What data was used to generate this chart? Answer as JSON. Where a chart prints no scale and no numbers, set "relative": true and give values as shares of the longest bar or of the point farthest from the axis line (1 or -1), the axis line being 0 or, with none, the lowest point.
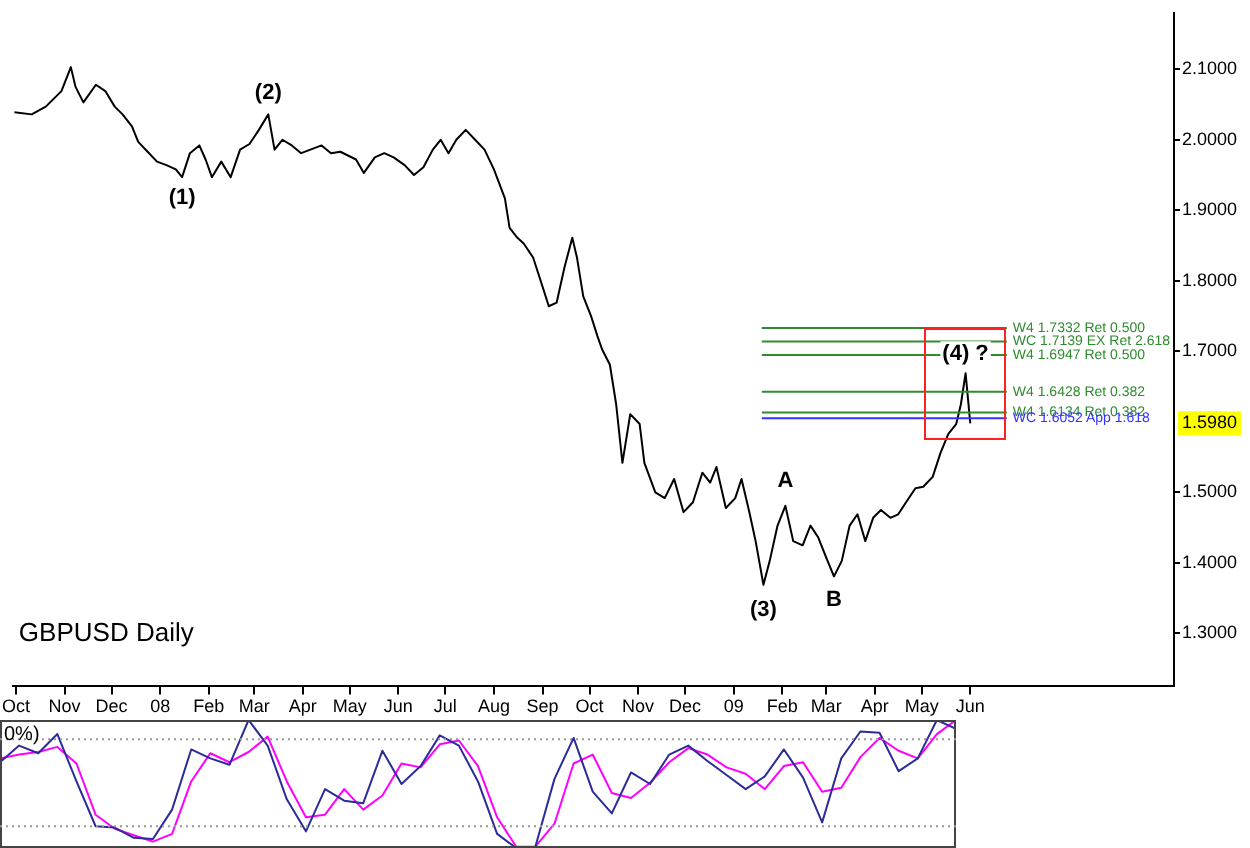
{
  "chart_data": [
    {
      "type": "line",
      "title": "GBPUSD Daily",
      "color": "#000000",
      "legend": false,
      "x": [
        "2007-09-30",
        "2007-10-11",
        "2007-10-20",
        "2007-10-30",
        "2007-11-05",
        "2007-11-08",
        "2007-11-13",
        "2007-11-21",
        "2007-11-27",
        "2007-12-03",
        "2007-12-08",
        "2007-12-14",
        "2007-12-18",
        "2007-12-24",
        "2007-12-30",
        "2008-01-05",
        "2008-01-11",
        "2008-01-15",
        "2008-01-20",
        "2008-01-26",
        "2008-01-30",
        "2008-02-03",
        "2008-02-09",
        "2008-02-15",
        "2008-02-21",
        "2008-02-27",
        "2008-03-04",
        "2008-03-10",
        "2008-03-14",
        "2008-03-19",
        "2008-03-25",
        "2008-03-31",
        "2008-04-13",
        "2008-04-19",
        "2008-04-25",
        "2008-05-05",
        "2008-05-10",
        "2008-05-17",
        "2008-05-23",
        "2008-05-29",
        "2008-06-05",
        "2008-06-11",
        "2008-06-17",
        "2008-06-23",
        "2008-06-28",
        "2008-07-03",
        "2008-07-08",
        "2008-07-14",
        "2008-07-20",
        "2008-07-26",
        "2008-08-01",
        "2008-08-08",
        "2008-08-11",
        "2008-08-16",
        "2008-08-20",
        "2008-08-26",
        "2008-09-01",
        "2008-09-05",
        "2008-09-10",
        "2008-09-15",
        "2008-09-20",
        "2008-09-23",
        "2008-09-27",
        "2008-10-02",
        "2008-10-06",
        "2008-10-09",
        "2008-10-14",
        "2008-10-18",
        "2008-10-22",
        "2008-10-27",
        "2008-11-02",
        "2008-11-05",
        "2008-11-12",
        "2008-11-18",
        "2008-11-24",
        "2008-11-30",
        "2008-12-06",
        "2008-12-12",
        "2008-12-17",
        "2008-12-21",
        "2008-12-27",
        "2009-01-02",
        "2009-01-06",
        "2009-01-11",
        "2009-01-15",
        "2009-01-20",
        "2009-01-24",
        "2009-01-29",
        "2009-02-03",
        "2009-02-08",
        "2009-02-14",
        "2009-02-19",
        "2009-02-24",
        "2009-03-01",
        "2009-03-06",
        "2009-03-11",
        "2009-03-16",
        "2009-03-21",
        "2009-03-26",
        "2009-03-31",
        "2009-04-05",
        "2009-04-11",
        "2009-04-16",
        "2009-04-21",
        "2009-04-27",
        "2009-05-02",
        "2009-05-08",
        "2009-05-13",
        "2009-05-18",
        "2009-05-23",
        "2009-05-26",
        "2009-05-29",
        "2009-06-01"
      ],
      "values": [
        2.039,
        2.036,
        2.047,
        2.069,
        2.103,
        2.075,
        2.053,
        2.078,
        2.069,
        2.047,
        2.036,
        2.019,
        1.997,
        1.983,
        1.969,
        1.964,
        1.958,
        1.947,
        1.981,
        1.992,
        1.972,
        1.947,
        1.969,
        1.947,
        1.986,
        1.994,
        2.014,
        2.036,
        1.986,
        2.0,
        1.992,
        1.981,
        1.992,
        1.981,
        1.983,
        1.972,
        1.953,
        1.975,
        1.981,
        1.975,
        1.964,
        1.95,
        1.961,
        1.986,
        2.0,
        1.981,
        2.0,
        2.014,
        2.0,
        1.986,
        1.958,
        1.917,
        1.875,
        1.861,
        1.853,
        1.833,
        1.792,
        1.764,
        1.769,
        1.819,
        1.861,
        1.833,
        1.778,
        1.75,
        1.722,
        1.703,
        1.681,
        1.625,
        1.542,
        1.611,
        1.597,
        1.542,
        1.5,
        1.492,
        1.519,
        1.472,
        1.486,
        1.528,
        1.514,
        1.536,
        1.478,
        1.492,
        1.519,
        1.472,
        1.431,
        1.369,
        1.403,
        1.453,
        1.481,
        1.431,
        1.425,
        1.453,
        1.436,
        1.408,
        1.381,
        1.403,
        1.453,
        1.469,
        1.431,
        1.464,
        1.475,
        1.464,
        1.469,
        1.486,
        1.506,
        1.508,
        1.522,
        1.556,
        1.583,
        1.597,
        1.625,
        1.669,
        1.598
      ],
      "xlim": [
        "2007-09-29",
        "2009-10-09"
      ],
      "xticks": [
        {
          "value": "2007-10-01",
          "label": "Oct"
        },
        {
          "value": "2007-11-01",
          "label": "Nov"
        },
        {
          "value": "2007-12-01",
          "label": "Dec"
        },
        {
          "value": "2008-01-01",
          "label": "08"
        },
        {
          "value": "2008-02-01",
          "label": "Feb"
        },
        {
          "value": "2008-03-01",
          "label": "Mar"
        },
        {
          "value": "2008-04-01",
          "label": "Apr"
        },
        {
          "value": "2008-05-01",
          "label": "May"
        },
        {
          "value": "2008-06-01",
          "label": "Jun"
        },
        {
          "value": "2008-07-01",
          "label": "Jul"
        },
        {
          "value": "2008-08-01",
          "label": "Aug"
        },
        {
          "value": "2008-09-01",
          "label": "Sep"
        },
        {
          "value": "2008-10-01",
          "label": "Oct"
        },
        {
          "value": "2008-11-01",
          "label": "Nov"
        },
        {
          "value": "2008-12-01",
          "label": "Dec"
        },
        {
          "value": "2009-01-01",
          "label": "09"
        },
        {
          "value": "2009-02-01",
          "label": "Feb"
        },
        {
          "value": "2009-03-01",
          "label": "Mar"
        },
        {
          "value": "2009-04-01",
          "label": "Apr"
        },
        {
          "value": "2009-05-01",
          "label": "May"
        },
        {
          "value": "2009-06-01",
          "label": "Jun"
        }
      ],
      "ylim": [
        1.225,
        2.18
      ],
      "yticks": [
        {
          "value": 1.3,
          "label": "1.3000"
        },
        {
          "value": 1.4,
          "label": "1.4000"
        },
        {
          "value": 1.5,
          "label": "1.5000"
        },
        {
          "value": 1.7,
          "label": "1.7000"
        },
        {
          "value": 1.8,
          "label": "1.8000"
        },
        {
          "value": 1.9,
          "label": "1.9000"
        },
        {
          "value": 2.0,
          "label": "2.0000"
        },
        {
          "value": 2.1,
          "label": "2.1000"
        }
      ],
      "ref_lines": [
        {
          "axis": "y",
          "value": 1.7332,
          "label": "W4 1.7332 Ret 0.500",
          "color": "#2e8b2e"
        },
        {
          "axis": "y",
          "value": 1.7139,
          "label": "WC 1.7139 EX Ret 2.618",
          "color": "#2e8b2e"
        },
        {
          "axis": "y",
          "value": 1.6947,
          "label": "W4 1.6947 Ret 0.500",
          "color": "#2e8b2e"
        },
        {
          "axis": "y",
          "value": 1.6428,
          "label": "W4 1.6428 Ret 0.382",
          "color": "#2e8b2e"
        },
        {
          "axis": "y",
          "value": 1.6134,
          "label": "W4 1.6134 Ret 0.382",
          "color": "#2e8b2e"
        },
        {
          "axis": "y",
          "value": 1.6052,
          "label": "WC 1.6052 App 1.618",
          "color": "#3333ff"
        }
      ],
      "annotations": [
        {
          "text": "(1)",
          "x": "2008-01-15",
          "y": 1.945
        },
        {
          "text": "(2)",
          "x": "2008-03-10",
          "y": 2.04
        },
        {
          "text": "(3)",
          "x": "2009-01-20",
          "y": 1.36
        },
        {
          "text": "A",
          "x": "2009-02-03",
          "y": 1.49
        },
        {
          "text": "B",
          "x": "2009-03-06",
          "y": 1.375
        },
        {
          "text": "(4) ?",
          "x": "2009-05-29",
          "y": 1.669
        },
        {
          "text": "1.5980",
          "y": 1.598
        }
      ]
    },
    {
      "type": "line",
      "relative": true,
      "legend": false,
      "categories": [
        null,
        null,
        null,
        null,
        null,
        null,
        null,
        null,
        null,
        null,
        null,
        null,
        null,
        null,
        null,
        null,
        null,
        null,
        null,
        null,
        null,
        null,
        null,
        null,
        null,
        null,
        null,
        null,
        null,
        null,
        null,
        null,
        null,
        null,
        null,
        null,
        null,
        null,
        null,
        null,
        null,
        null,
        null,
        null,
        null,
        null,
        null,
        null,
        null,
        null,
        null
      ],
      "series": [
        {
          "color": "#2b2b99",
          "values": [
            0.67,
            0.8,
            0.74,
            0.89,
            0.52,
            0.17,
            0.16,
            0.08,
            0.07,
            0.3,
            0.77,
            0.7,
            0.65,
            1,
            0.8,
            0.38,
            0.13,
            0.46,
            0.37,
            0.35,
            0.76,
            0.5,
            0.64,
            0.88,
            0.8,
            0.52,
            0.11,
            0,
            0.01,
            0.54,
            0.86,
            0.44,
            0.27,
            0.59,
            0.5,
            0.73,
            0.8,
            0.68,
            0.57,
            0.46,
            0.56,
            0.77,
            0.55,
            0.2,
            0.7,
            0.91,
            0.9,
            0.6,
            0.7,
            1,
            0.93
          ]
        },
        {
          "color": "#ff00ff",
          "values": [
            0.7,
            0.73,
            0.75,
            0.79,
            0.66,
            0.26,
            0.15,
            0.1,
            0.05,
            0.11,
            0.52,
            0.74,
            0.67,
            0.75,
            0.87,
            0.52,
            0.24,
            0.26,
            0.46,
            0.3,
            0.41,
            0.66,
            0.63,
            0.81,
            0.84,
            0.64,
            0.24,
            0.01,
            0.01,
            0.19,
            0.66,
            0.73,
            0.43,
            0.39,
            0.51,
            0.67,
            0.78,
            0.73,
            0.63,
            0.58,
            0.46,
            0.64,
            0.67,
            0.44,
            0.47,
            0.71,
            0.86,
            0.76,
            0.7,
            0.89,
            1
          ]
        }
      ],
      "ref_lines": [
        {
          "axis": "y",
          "value": 0.85,
          "color": "#999999",
          "line_style": "dotted"
        },
        {
          "axis": "y",
          "value": 0.17,
          "color": "#999999",
          "line_style": "dotted"
        }
      ],
      "annotations": [
        "0%)"
      ]
    }
  ]
}
